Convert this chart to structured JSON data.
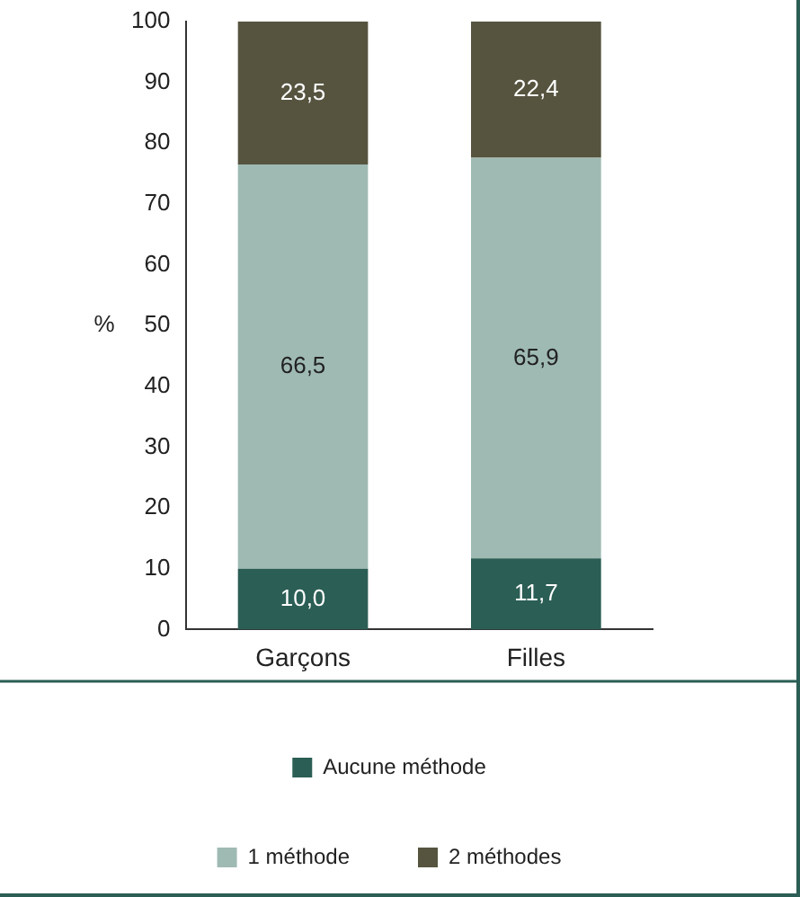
{
  "chart_data": {
    "type": "bar",
    "stacked": true,
    "ylabel": "%",
    "categories": [
      "Garçons",
      "Filles"
    ],
    "series": [
      {
        "name": "Aucune méthode",
        "color": "#2b5e55",
        "values": [
          10.0,
          11.7
        ],
        "value_labels": [
          "10,0",
          "11,7"
        ]
      },
      {
        "name": "1 méthode",
        "color": "#9fbab3",
        "values": [
          66.5,
          65.9
        ],
        "value_labels": [
          "66,5",
          "65,9"
        ]
      },
      {
        "name": "2 méthodes",
        "color": "#56543f",
        "values": [
          23.5,
          22.4
        ],
        "value_labels": [
          "23,5",
          "22,4"
        ]
      }
    ],
    "ylim": [
      0,
      100
    ],
    "yticks": [
      0,
      10,
      20,
      30,
      40,
      50,
      60,
      70,
      80,
      90,
      100
    ],
    "grid": false,
    "legend": "bottom"
  }
}
